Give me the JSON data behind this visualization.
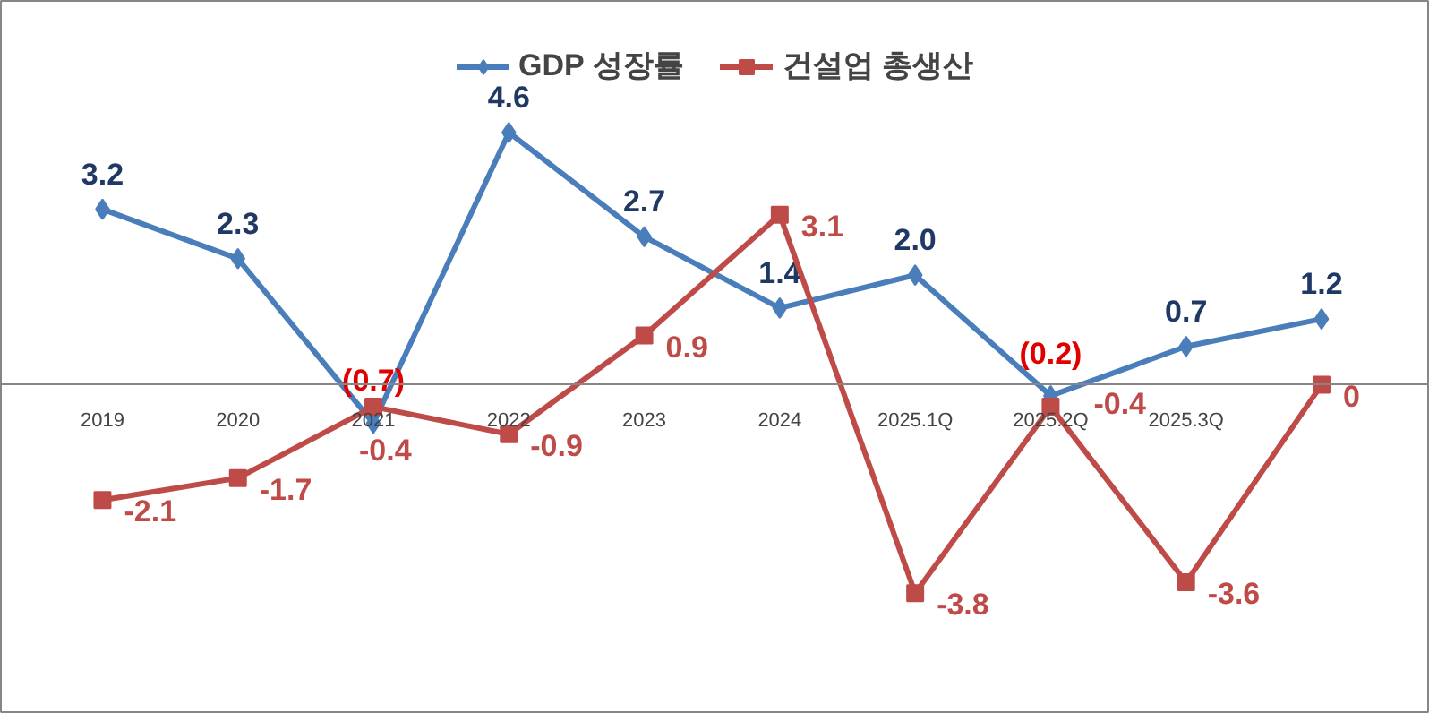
{
  "chart_data": {
    "type": "line",
    "categories": [
      "2019",
      "2020",
      "2021",
      "2022",
      "2023",
      "2024",
      "2025.1Q",
      "2025.2Q",
      "2025.3Q",
      null
    ],
    "ylim": [
      -6,
      7
    ],
    "series": [
      {
        "name": "GDP 성장률",
        "color": "#4a7ebb",
        "values": [
          3.2,
          2.3,
          -0.7,
          4.6,
          2.7,
          1.4,
          2.0,
          -0.2,
          0.7,
          1.2
        ],
        "value_labels": [
          "3.2",
          "2.3",
          "(0.7)",
          "4.6",
          "2.7",
          "1.4",
          "2.0",
          "(0.2)",
          "0.7",
          "1.2"
        ],
        "marker": "diamond"
      },
      {
        "name": "건설업 총생산",
        "color": "#be4b48",
        "values": [
          -2.1,
          -1.7,
          -0.4,
          -0.9,
          0.9,
          3.1,
          -3.8,
          -0.4,
          -3.6,
          0
        ],
        "value_labels": [
          "-2.1",
          "-1.7",
          "-0.4",
          "-0.9",
          "0.9",
          "3.1",
          "-3.8",
          "-0.4",
          "-3.6",
          "0"
        ],
        "marker": "square"
      }
    ],
    "legend": "top",
    "grid": false
  }
}
